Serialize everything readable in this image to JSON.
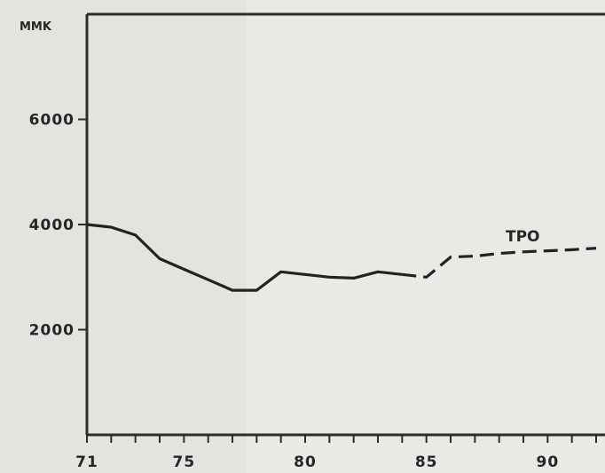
{
  "chart_data": {
    "type": "line",
    "ylabel": "MMK",
    "xlim": [
      71,
      92
    ],
    "ylim": [
      0,
      8000
    ],
    "x_ticks": [
      71,
      75,
      80,
      85,
      90
    ],
    "y_ticks": [
      2000,
      4000,
      6000
    ],
    "grid": false,
    "series": [
      {
        "name": "TPO",
        "segments": [
          {
            "style": "solid",
            "points": [
              {
                "x": 71,
                "y": 4000
              },
              {
                "x": 72,
                "y": 3950
              },
              {
                "x": 73,
                "y": 3800
              },
              {
                "x": 74,
                "y": 3350
              },
              {
                "x": 75,
                "y": 3150
              },
              {
                "x": 76,
                "y": 2950
              },
              {
                "x": 77,
                "y": 2750
              },
              {
                "x": 78,
                "y": 2750
              },
              {
                "x": 79,
                "y": 3100
              },
              {
                "x": 80,
                "y": 3050
              },
              {
                "x": 81,
                "y": 3000
              },
              {
                "x": 82,
                "y": 2980
              },
              {
                "x": 83,
                "y": 3100
              },
              {
                "x": 84,
                "y": 3050
              }
            ]
          },
          {
            "style": "dashed",
            "points": [
              {
                "x": 84,
                "y": 3050
              },
              {
                "x": 85,
                "y": 3000
              },
              {
                "x": 86,
                "y": 3380
              },
              {
                "x": 87,
                "y": 3400
              },
              {
                "x": 88,
                "y": 3450
              },
              {
                "x": 89,
                "y": 3480
              },
              {
                "x": 90,
                "y": 3500
              },
              {
                "x": 91,
                "y": 3520
              },
              {
                "x": 92,
                "y": 3550
              }
            ]
          }
        ]
      }
    ]
  }
}
